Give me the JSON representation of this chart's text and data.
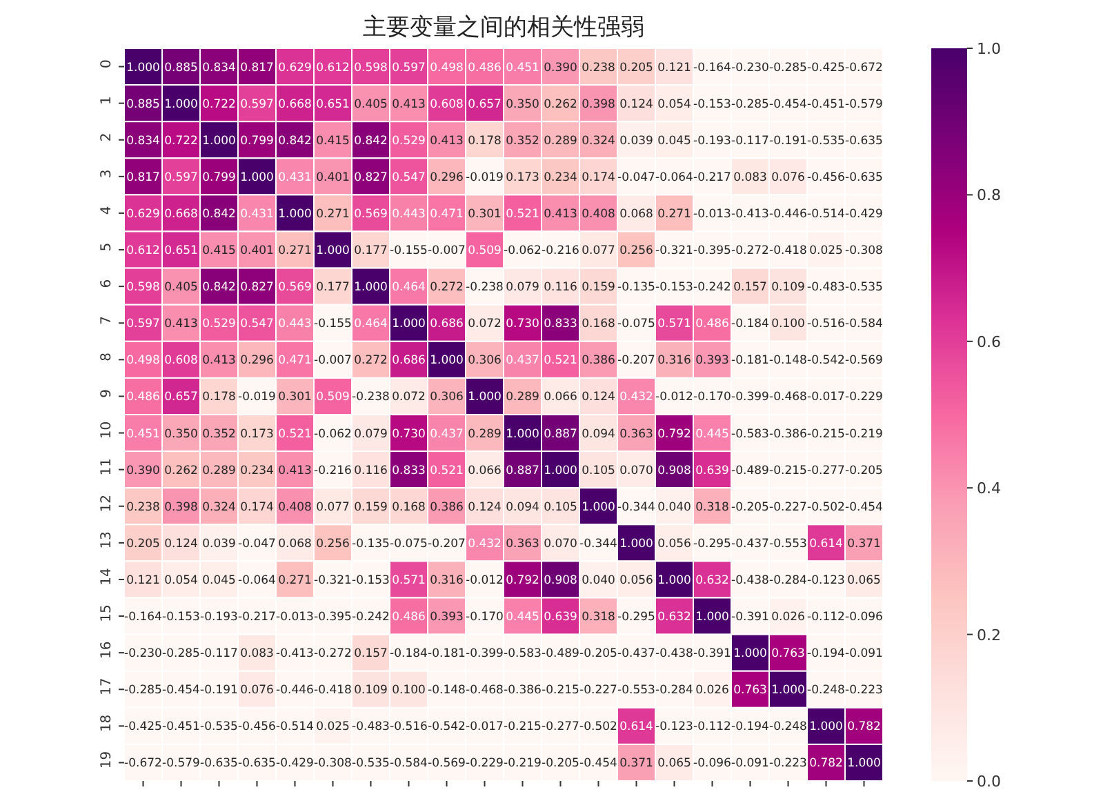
{
  "chart_data": {
    "type": "heatmap",
    "title": "主要变量之间的相关性强弱",
    "categories": [
      null,
      null,
      null,
      null,
      null,
      null,
      null,
      null,
      null,
      null,
      null,
      null,
      null,
      null,
      null,
      null,
      null,
      null,
      null,
      null
    ],
    "y_categories": [
      "0",
      "1",
      "2",
      "3",
      "4",
      "5",
      "6",
      "7",
      "8",
      "9",
      "10",
      "11",
      "12",
      "13",
      "14",
      "15",
      "16",
      "17",
      "18",
      "19"
    ],
    "tick_labels": "y",
    "clim": [
      0,
      1
    ],
    "cticks": [
      {
        "value": 0,
        "label": "0.0"
      },
      0.2,
      0.4,
      0.6,
      0.8,
      {
        "value": 1,
        "label": "1.0"
      }
    ],
    "cells": [
      [
        1.0,
        0.885,
        0.834,
        0.817,
        0.629,
        0.612,
        0.598,
        0.597,
        0.498,
        0.486,
        0.451,
        0.39,
        0.238,
        0.205,
        0.121,
        -0.164,
        -0.23,
        -0.285,
        -0.425,
        -0.672
      ],
      [
        0.885,
        1.0,
        0.722,
        0.597,
        0.668,
        0.651,
        0.405,
        0.413,
        0.608,
        0.657,
        0.35,
        0.262,
        0.398,
        0.124,
        0.054,
        -0.153,
        -0.285,
        -0.454,
        -0.451,
        -0.579
      ],
      [
        0.834,
        0.722,
        1.0,
        0.799,
        0.842,
        0.415,
        0.842,
        0.529,
        0.413,
        0.178,
        0.352,
        0.289,
        0.324,
        0.039,
        0.045,
        -0.193,
        -0.117,
        -0.191,
        -0.535,
        -0.635
      ],
      [
        0.817,
        0.597,
        0.799,
        1.0,
        0.431,
        0.401,
        0.827,
        0.547,
        0.296,
        -0.019,
        0.173,
        0.234,
        0.174,
        -0.047,
        -0.064,
        -0.217,
        0.083,
        0.076,
        -0.456,
        -0.635
      ],
      [
        0.629,
        0.668,
        0.842,
        0.431,
        1.0,
        0.271,
        0.569,
        0.443,
        0.471,
        0.301,
        0.521,
        0.413,
        0.408,
        0.068,
        0.271,
        -0.013,
        -0.413,
        -0.446,
        -0.514,
        -0.429
      ],
      [
        0.612,
        0.651,
        0.415,
        0.401,
        0.271,
        1.0,
        0.177,
        -0.155,
        -0.007,
        0.509,
        -0.062,
        -0.216,
        0.077,
        0.256,
        -0.321,
        -0.395,
        -0.272,
        -0.418,
        0.025,
        -0.308
      ],
      [
        0.598,
        0.405,
        0.842,
        0.827,
        0.569,
        0.177,
        1.0,
        0.464,
        0.272,
        -0.238,
        0.079,
        0.116,
        0.159,
        -0.135,
        -0.153,
        -0.242,
        0.157,
        0.109,
        -0.483,
        -0.535
      ],
      [
        0.597,
        0.413,
        0.529,
        0.547,
        0.443,
        -0.155,
        0.464,
        1.0,
        0.686,
        0.072,
        0.73,
        0.833,
        0.168,
        -0.075,
        0.571,
        0.486,
        -0.184,
        0.1,
        -0.516,
        -0.584
      ],
      [
        0.498,
        0.608,
        0.413,
        0.296,
        0.471,
        -0.007,
        0.272,
        0.686,
        1.0,
        0.306,
        0.437,
        0.521,
        0.386,
        -0.207,
        0.316,
        0.393,
        -0.181,
        -0.148,
        -0.542,
        -0.569
      ],
      [
        0.486,
        0.657,
        0.178,
        -0.019,
        0.301,
        0.509,
        -0.238,
        0.072,
        0.306,
        1.0,
        0.289,
        0.066,
        0.124,
        0.432,
        -0.012,
        -0.17,
        -0.399,
        -0.468,
        -0.017,
        -0.229
      ],
      [
        0.451,
        0.35,
        0.352,
        0.173,
        0.521,
        -0.062,
        0.079,
        0.73,
        0.437,
        0.289,
        1.0,
        0.887,
        0.094,
        0.363,
        0.792,
        0.445,
        -0.583,
        -0.386,
        -0.215,
        -0.219
      ],
      [
        0.39,
        0.262,
        0.289,
        0.234,
        0.413,
        -0.216,
        0.116,
        0.833,
        0.521,
        0.066,
        0.887,
        1.0,
        0.105,
        0.07,
        0.908,
        0.639,
        -0.489,
        -0.215,
        -0.277,
        -0.205
      ],
      [
        0.238,
        0.398,
        0.324,
        0.174,
        0.408,
        0.077,
        0.159,
        0.168,
        0.386,
        0.124,
        0.094,
        0.105,
        1.0,
        -0.344,
        0.04,
        0.318,
        -0.205,
        -0.227,
        -0.502,
        -0.454
      ],
      [
        0.205,
        0.124,
        0.039,
        -0.047,
        0.068,
        0.256,
        -0.135,
        -0.075,
        -0.207,
        0.432,
        0.363,
        0.07,
        -0.344,
        1.0,
        0.056,
        -0.295,
        -0.437,
        -0.553,
        0.614,
        0.371
      ],
      [
        0.121,
        0.054,
        0.045,
        -0.064,
        0.271,
        -0.321,
        -0.153,
        0.571,
        0.316,
        -0.012,
        0.792,
        0.908,
        0.04,
        0.056,
        1.0,
        0.632,
        -0.438,
        -0.284,
        -0.123,
        0.065
      ],
      [
        -0.164,
        -0.153,
        -0.193,
        -0.217,
        -0.013,
        -0.395,
        -0.242,
        0.486,
        0.393,
        -0.17,
        0.445,
        0.639,
        0.318,
        -0.295,
        0.632,
        1.0,
        -0.391,
        0.026,
        -0.112,
        -0.096
      ],
      [
        -0.23,
        -0.285,
        -0.117,
        0.083,
        -0.413,
        -0.272,
        0.157,
        -0.184,
        -0.181,
        -0.399,
        -0.583,
        -0.489,
        -0.205,
        -0.437,
        -0.438,
        -0.391,
        1.0,
        0.763,
        -0.194,
        -0.091
      ],
      [
        -0.285,
        -0.454,
        -0.191,
        0.076,
        -0.446,
        -0.418,
        0.109,
        0.1,
        -0.148,
        -0.468,
        -0.386,
        -0.215,
        -0.227,
        -0.553,
        -0.284,
        0.026,
        0.763,
        1.0,
        -0.248,
        -0.223
      ],
      [
        -0.425,
        -0.451,
        -0.535,
        -0.456,
        -0.514,
        0.025,
        -0.483,
        -0.516,
        -0.542,
        -0.017,
        -0.215,
        -0.277,
        -0.502,
        0.614,
        -0.123,
        -0.112,
        -0.194,
        -0.248,
        1.0,
        0.782
      ],
      [
        -0.672,
        -0.579,
        -0.635,
        -0.635,
        -0.429,
        -0.308,
        -0.535,
        -0.584,
        -0.569,
        -0.229,
        -0.219,
        -0.205,
        -0.454,
        0.371,
        0.065,
        -0.096,
        -0.091,
        -0.223,
        0.782,
        1.0
      ]
    ],
    "cell_labels": [
      [
        "1.000",
        "0.885",
        "0.834",
        "0.817",
        "0.629",
        "0.612",
        "0.598",
        "0.597",
        "0.498",
        "0.486",
        "0.451",
        "0.390",
        "0.238",
        "0.205",
        "0.121",
        "-0.164",
        "-0.230",
        "-0.285",
        "-0.425",
        "-0.672"
      ],
      [
        "0.885",
        "1.000",
        "0.722",
        "0.597",
        "0.668",
        "0.651",
        "0.405",
        "0.413",
        "0.608",
        "0.657",
        "0.350",
        "0.262",
        "0.398",
        "0.124",
        "0.054",
        "-0.153",
        "-0.285",
        "-0.454",
        "-0.451",
        "-0.579"
      ],
      [
        "0.834",
        "0.722",
        "1.000",
        "0.799",
        "0.842",
        "0.415",
        "0.842",
        "0.529",
        "0.413",
        "0.178",
        "0.352",
        "0.289",
        "0.324",
        "0.039",
        "0.045",
        "-0.193",
        "-0.117",
        "-0.191",
        "-0.535",
        "-0.635"
      ],
      [
        "0.817",
        "0.597",
        "0.799",
        "1.000",
        "0.431",
        "0.401",
        "0.827",
        "0.547",
        "0.296",
        "-0.019",
        "0.173",
        "0.234",
        "0.174",
        "-0.047",
        "-0.064",
        "-0.217",
        "0.083",
        "0.076",
        "-0.456",
        "-0.635"
      ],
      [
        "0.629",
        "0.668",
        "0.842",
        "0.431",
        "1.000",
        "0.271",
        "0.569",
        "0.443",
        "0.471",
        "0.301",
        "0.521",
        "0.413",
        "0.408",
        "0.068",
        "0.271",
        "-0.013",
        "-0.413",
        "-0.446",
        "-0.514",
        "-0.429"
      ],
      [
        "0.612",
        "0.651",
        "0.415",
        "0.401",
        "0.271",
        "1.000",
        "0.177",
        "-0.155",
        "-0.007",
        "0.509",
        "-0.062",
        "-0.216",
        "0.077",
        "0.256",
        "-0.321",
        "-0.395",
        "-0.272",
        "-0.418",
        "0.025",
        "-0.308"
      ],
      [
        "0.598",
        "0.405",
        "0.842",
        "0.827",
        "0.569",
        "0.177",
        "1.000",
        "0.464",
        "0.272",
        "-0.238",
        "0.079",
        "0.116",
        "0.159",
        "-0.135",
        "-0.153",
        "-0.242",
        "0.157",
        "0.109",
        "-0.483",
        "-0.535"
      ],
      [
        "0.597",
        "0.413",
        "0.529",
        "0.547",
        "0.443",
        "-0.155",
        "0.464",
        "1.000",
        "0.686",
        "0.072",
        "0.730",
        "0.833",
        "0.168",
        "-0.075",
        "0.571",
        "0.486",
        "-0.184",
        "0.100",
        "-0.516",
        "-0.584"
      ],
      [
        "0.498",
        "0.608",
        "0.413",
        "0.296",
        "0.471",
        "-0.007",
        "0.272",
        "0.686",
        "1.000",
        "0.306",
        "0.437",
        "0.521",
        "0.386",
        "-0.207",
        "0.316",
        "0.393",
        "-0.181",
        "-0.148",
        "-0.542",
        "-0.569"
      ],
      [
        "0.486",
        "0.657",
        "0.178",
        "-0.019",
        "0.301",
        "0.509",
        "-0.238",
        "0.072",
        "0.306",
        "1.000",
        "0.289",
        "0.066",
        "0.124",
        "0.432",
        "-0.012",
        "-0.170",
        "-0.399",
        "-0.468",
        "-0.017",
        "-0.229"
      ],
      [
        "0.451",
        "0.350",
        "0.352",
        "0.173",
        "0.521",
        "-0.062",
        "0.079",
        "0.730",
        "0.437",
        "0.289",
        "1.000",
        "0.887",
        "0.094",
        "0.363",
        "0.792",
        "0.445",
        "-0.583",
        "-0.386",
        "-0.215",
        "-0.219"
      ],
      [
        "0.390",
        "0.262",
        "0.289",
        "0.234",
        "0.413",
        "-0.216",
        "0.116",
        "0.833",
        "0.521",
        "0.066",
        "0.887",
        "1.000",
        "0.105",
        "0.070",
        "0.908",
        "0.639",
        "-0.489",
        "-0.215",
        "-0.277",
        "-0.205"
      ],
      [
        "0.238",
        "0.398",
        "0.324",
        "0.174",
        "0.408",
        "0.077",
        "0.159",
        "0.168",
        "0.386",
        "0.124",
        "0.094",
        "0.105",
        "1.000",
        "-0.344",
        "0.040",
        "0.318",
        "-0.205",
        "-0.227",
        "-0.502",
        "-0.454"
      ],
      [
        "0.205",
        "0.124",
        "0.039",
        "-0.047",
        "0.068",
        "0.256",
        "-0.135",
        "-0.075",
        "-0.207",
        "0.432",
        "0.363",
        "0.070",
        "-0.344",
        "1.000",
        "0.056",
        "-0.295",
        "-0.437",
        "-0.553",
        "0.614",
        "0.371"
      ],
      [
        "0.121",
        "0.054",
        "0.045",
        "-0.064",
        "0.271",
        "-0.321",
        "-0.153",
        "0.571",
        "0.316",
        "-0.012",
        "0.792",
        "0.908",
        "0.040",
        "0.056",
        "1.000",
        "0.632",
        "-0.438",
        "-0.284",
        "-0.123",
        "0.065"
      ],
      [
        "-0.164",
        "-0.153",
        "-0.193",
        "-0.217",
        "-0.013",
        "-0.395",
        "-0.242",
        "0.486",
        "0.393",
        "-0.170",
        "0.445",
        "0.639",
        "0.318",
        "-0.295",
        "0.632",
        "1.000",
        "-0.391",
        "0.026",
        "-0.112",
        "-0.096"
      ],
      [
        "-0.230",
        "-0.285",
        "-0.117",
        "0.083",
        "-0.413",
        "-0.272",
        "0.157",
        "-0.184",
        "-0.181",
        "-0.399",
        "-0.583",
        "-0.489",
        "-0.205",
        "-0.437",
        "-0.438",
        "-0.391",
        "1.000",
        "0.763",
        "-0.194",
        "-0.091"
      ],
      [
        "-0.285",
        "-0.454",
        "-0.191",
        "0.076",
        "-0.446",
        "-0.418",
        "0.109",
        "0.100",
        "-0.148",
        "-0.468",
        "-0.386",
        "-0.215",
        "-0.227",
        "-0.553",
        "-0.284",
        "0.026",
        "0.763",
        "1.000",
        "-0.248",
        "-0.223"
      ],
      [
        "-0.425",
        "-0.451",
        "-0.535",
        "-0.456",
        "-0.514",
        "0.025",
        "-0.483",
        "-0.516",
        "-0.542",
        "-0.017",
        "-0.215",
        "-0.277",
        "-0.502",
        "0.614",
        "-0.123",
        "-0.112",
        "-0.194",
        "-0.248",
        "1.000",
        "0.782"
      ],
      [
        "-0.672",
        "-0.579",
        "-0.635",
        "-0.635",
        "-0.429",
        "-0.308",
        "-0.535",
        "-0.584",
        "-0.569",
        "-0.229",
        "-0.219",
        "-0.205",
        "-0.454",
        "0.371",
        "0.065",
        "-0.096",
        "-0.091",
        "-0.223",
        "0.782",
        "1.000"
      ]
    ]
  }
}
